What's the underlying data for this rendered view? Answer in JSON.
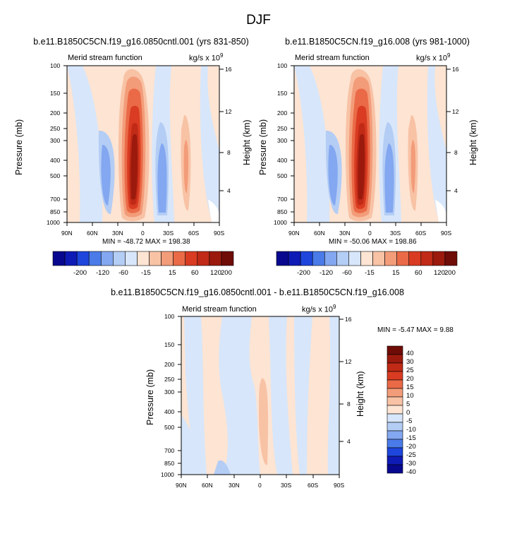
{
  "page": {
    "title": "DJF"
  },
  "colors": {
    "cb_top": [
      "#08088f",
      "#0f1bb5",
      "#1e46dc",
      "#4a7be8",
      "#83a7f0",
      "#b4cdf5",
      "#d7e6fa",
      "#fde4d3",
      "#f8c2a5",
      "#f39c79",
      "#ea6a47",
      "#d93c22",
      "#c02a16",
      "#9b1a0d",
      "#6f0c07"
    ],
    "cb_diff": [
      "#6f0c07",
      "#9b1a0d",
      "#c02a16",
      "#d93c22",
      "#ea6a47",
      "#f39c79",
      "#f8c2a5",
      "#fde4d3",
      "#d7e6fa",
      "#b4cdf5",
      "#83a7f0",
      "#4a7be8",
      "#1e46dc",
      "#0f1bb5",
      "#08088f"
    ]
  },
  "panels": [
    {
      "title": "b.e11.B1850C5CN.f19_g16.0850cntl.001 (yrs 831-850)",
      "left_string": "Merid stream function",
      "right_string": "kg/s x 10",
      "right_exp": "9",
      "ylabel": "Pressure (mb)",
      "ylabel_right": "Height (km)",
      "minmax": "MIN = -48.72  MAX = 198.38",
      "xticks": [
        "90N",
        "60N",
        "30N",
        "0",
        "30S",
        "60S",
        "90S"
      ],
      "yticks": [
        "100",
        "150",
        "200",
        "250",
        "300",
        "400",
        "500",
        "700",
        "850",
        "1000"
      ],
      "yticks_right": [
        "16",
        "12",
        "8",
        "4"
      ],
      "colorbar_labels": [
        "-200",
        "-120",
        "-60",
        "-15",
        "15",
        "60",
        "120",
        "200"
      ]
    },
    {
      "title": "b.e11.B1850C5CN.f19_g16.008 (yrs 981-1000)",
      "left_string": "Merid stream function",
      "right_string": "kg/s x 10",
      "right_exp": "9",
      "ylabel": "Pressure (mb)",
      "ylabel_right": "Height (km)",
      "minmax": "MIN = -50.06  MAX = 198.86",
      "xticks": [
        "90N",
        "60N",
        "30N",
        "0",
        "30S",
        "60S",
        "90S"
      ],
      "yticks": [
        "100",
        "150",
        "200",
        "250",
        "300",
        "400",
        "500",
        "700",
        "850",
        "1000"
      ],
      "yticks_right": [
        "16",
        "12",
        "8",
        "4"
      ],
      "colorbar_labels": [
        "-200",
        "-120",
        "-60",
        "-15",
        "15",
        "60",
        "120",
        "200"
      ]
    },
    {
      "title": "b.e11.B1850C5CN.f19_g16.0850cntl.001 - b.e11.B1850C5CN.f19_g16.008",
      "left_string": "Merid stream function",
      "right_string": "kg/s x 10",
      "right_exp": "9",
      "ylabel": "Pressure (mb)",
      "ylabel_right": "Height (km)",
      "minmax": "MIN =  -5.47  MAX =   9.88",
      "xticks": [
        "90N",
        "60N",
        "30N",
        "0",
        "30S",
        "60S",
        "90S"
      ],
      "yticks": [
        "100",
        "150",
        "200",
        "250",
        "300",
        "400",
        "500",
        "700",
        "850",
        "1000"
      ],
      "yticks_right": [
        "16",
        "12",
        "8",
        "4"
      ],
      "colorbar_labels": [
        "40",
        "30",
        "25",
        "20",
        "15",
        "10",
        "5",
        "0",
        "-5",
        "-10",
        "-15",
        "-20",
        "-25",
        "-30",
        "-40"
      ]
    }
  ],
  "chart_data": [
    {
      "type": "heatmap",
      "title": "b.e11.B1850C5CN.f19_g16.0850cntl.001 (yrs 831-850)",
      "xlabel": "",
      "ylabel": "Pressure (mb)",
      "ylabel_right": "Height (km)",
      "x_ticks": [
        "90N",
        "60N",
        "30N",
        "0",
        "30S",
        "60S",
        "90S"
      ],
      "y_ticks_mb": [
        100,
        150,
        200,
        250,
        300,
        400,
        500,
        700,
        850,
        1000
      ],
      "y_ticks_km": [
        16,
        12,
        8,
        4
      ],
      "min": -48.72,
      "max": 198.38,
      "units": "kg/s x 10^9",
      "contour_levels": [
        -200,
        -120,
        -60,
        -15,
        15,
        60,
        120,
        200
      ],
      "features": [
        {
          "lat_center": -12,
          "p_center_mb": 400,
          "peak": 198.38,
          "sign": "positive"
        },
        {
          "lat_center": 40,
          "p_center_mb": 450,
          "sign": "negative"
        },
        {
          "lat_center": -28,
          "p_center_mb": 500,
          "min": -48.72,
          "sign": "negative"
        },
        {
          "lat_center": -55,
          "p_center_mb": 450,
          "sign": "positive"
        }
      ]
    },
    {
      "type": "heatmap",
      "title": "b.e11.B1850C5CN.f19_g16.008 (yrs 981-1000)",
      "ylabel": "Pressure (mb)",
      "ylabel_right": "Height (km)",
      "x_ticks": [
        "90N",
        "60N",
        "30N",
        "0",
        "30S",
        "60S",
        "90S"
      ],
      "y_ticks_mb": [
        100,
        150,
        200,
        250,
        300,
        400,
        500,
        700,
        850,
        1000
      ],
      "y_ticks_km": [
        16,
        12,
        8,
        4
      ],
      "min": -50.06,
      "max": 198.86,
      "units": "kg/s x 10^9",
      "contour_levels": [
        -200,
        -120,
        -60,
        -15,
        15,
        60,
        120,
        200
      ],
      "features": [
        {
          "lat_center": -12,
          "p_center_mb": 400,
          "peak": 198.86,
          "sign": "positive"
        },
        {
          "lat_center": 40,
          "p_center_mb": 450,
          "sign": "negative"
        },
        {
          "lat_center": -28,
          "p_center_mb": 500,
          "min": -50.06,
          "sign": "negative"
        },
        {
          "lat_center": -55,
          "p_center_mb": 450,
          "sign": "positive"
        }
      ]
    },
    {
      "type": "heatmap",
      "title": "b.e11.B1850C5CN.f19_g16.0850cntl.001 - b.e11.B1850C5CN.f19_g16.008",
      "ylabel": "Pressure (mb)",
      "ylabel_right": "Height (km)",
      "x_ticks": [
        "90N",
        "60N",
        "30N",
        "0",
        "30S",
        "60S",
        "90S"
      ],
      "y_ticks_mb": [
        100,
        150,
        200,
        250,
        300,
        400,
        500,
        700,
        850,
        1000
      ],
      "y_ticks_km": [
        16,
        12,
        8,
        4
      ],
      "min": -5.47,
      "max": 9.88,
      "units": "kg/s x 10^9",
      "contour_levels": [
        40,
        30,
        25,
        20,
        15,
        10,
        5,
        0,
        -5,
        -10,
        -15,
        -20,
        -25,
        -30,
        -40
      ],
      "features": [
        {
          "lat_center": -5,
          "p_center_mb": 600,
          "peak": 9.88,
          "sign": "positive"
        }
      ]
    }
  ]
}
